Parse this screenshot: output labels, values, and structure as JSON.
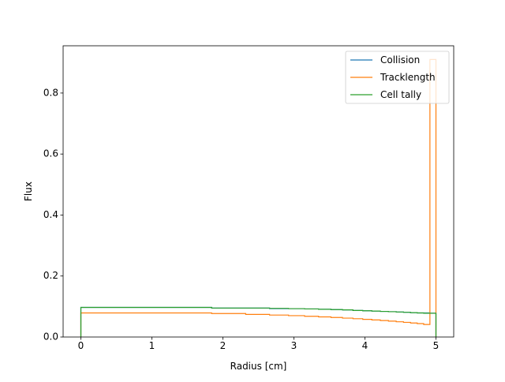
{
  "chart_data": {
    "type": "line",
    "step": "post",
    "title": "",
    "xlabel": "Radius [cm]",
    "ylabel": "Flux",
    "xlim": [
      -0.25,
      5.25
    ],
    "ylim": [
      0,
      0.955
    ],
    "xticks": [
      0,
      1,
      2,
      3,
      4,
      5
    ],
    "xtick_labels": [
      "0",
      "1",
      "2",
      "3",
      "4",
      "5"
    ],
    "yticks": [
      0,
      0.2,
      0.4,
      0.6,
      0.8
    ],
    "ytick_labels": [
      "0.0",
      "0.2",
      "0.4",
      "0.6",
      "0.8"
    ],
    "grid": false,
    "legend_position": "top-right",
    "bin_edges": [
      0,
      1.842,
      2.321,
      2.657,
      2.924,
      3.15,
      3.347,
      3.522,
      3.684,
      3.832,
      3.969,
      4.097,
      4.217,
      4.331,
      4.44,
      4.543,
      4.642,
      4.736,
      4.827,
      4.915,
      5.0
    ],
    "series": [
      {
        "name": "Collision",
        "color": "#1f77b4",
        "values": [
          0.097,
          0.095,
          0.095,
          0.093,
          0.093,
          0.092,
          0.091,
          0.09,
          0.089,
          0.087,
          0.086,
          0.085,
          0.084,
          0.083,
          0.082,
          0.081,
          0.08,
          0.079,
          0.079,
          0.078
        ]
      },
      {
        "name": "Tracklength",
        "color": "#ff7f0e",
        "values": [
          0.079,
          0.077,
          0.074,
          0.072,
          0.07,
          0.068,
          0.066,
          0.064,
          0.062,
          0.06,
          0.058,
          0.056,
          0.054,
          0.052,
          0.05,
          0.048,
          0.046,
          0.044,
          0.041,
          0.91
        ]
      },
      {
        "name": "Cell tally",
        "color": "#2ca02c",
        "values": [
          0.097,
          0.095,
          0.095,
          0.094,
          0.093,
          0.092,
          0.091,
          0.09,
          0.089,
          0.087,
          0.086,
          0.085,
          0.084,
          0.083,
          0.082,
          0.081,
          0.08,
          0.079,
          0.078,
          0.078
        ]
      }
    ]
  }
}
